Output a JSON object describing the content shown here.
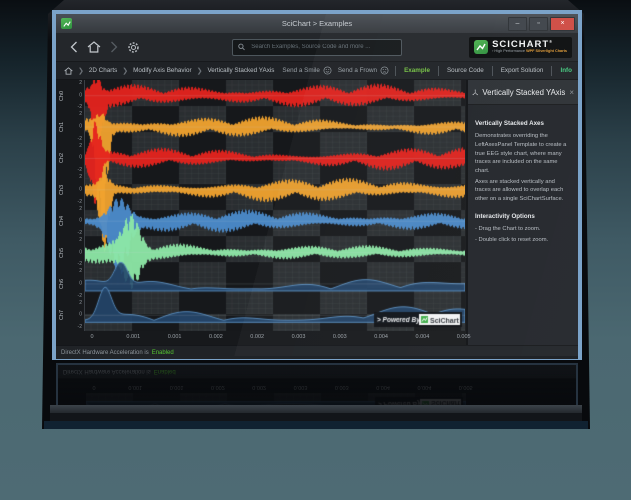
{
  "window": {
    "title": "SciChart > Examples",
    "controls": {
      "minimize": "–",
      "maximize": "▫",
      "close": "×"
    }
  },
  "toolbar": {
    "search_placeholder": "Search Examples, Source Code and more ...",
    "logo": {
      "brand": "SCICHART",
      "reg": "®",
      "tagline_pre": "› High Performance ",
      "tagline_hl": "WPF Silverlight Charts"
    }
  },
  "breadcrumb": {
    "items": [
      "2D Charts",
      "Modify Axis Behavior",
      "Vertically Stacked YAxis"
    ]
  },
  "feedback": {
    "smile": "Send a Smile",
    "frown": "Send a Frown"
  },
  "tabs": [
    {
      "label": "Example"
    },
    {
      "label": "Source Code"
    },
    {
      "label": "Export Solution"
    },
    {
      "label": "Info"
    }
  ],
  "panel": {
    "title": "Vertically Stacked YAxis",
    "close": "×",
    "heading1": "Vertically Stacked Axes",
    "para1": "Demonstrates overriding the LeftAxesPanel Template to create a true EEG style chart, where many traces are included on the same chart.",
    "para2": "Axes are stacked vertically and traces are allowed to overlap each other on a single SciChartSurface.",
    "heading2": "Interactivity Options",
    "bullet1": "- Drag the Chart to zoom.",
    "bullet2": "- Double click to reset zoom."
  },
  "chart": {
    "channels": [
      {
        "label": "Ch0",
        "color": "#e5231d",
        "kind": "eeg"
      },
      {
        "label": "Ch1",
        "color": "#f0a22e",
        "kind": "eeg"
      },
      {
        "label": "Ch2",
        "color": "#e5231d",
        "kind": "eeg"
      },
      {
        "label": "Ch3",
        "color": "#f0a22e",
        "kind": "eeg"
      },
      {
        "label": "Ch4",
        "color": "#4b8bcb",
        "kind": "eeg"
      },
      {
        "label": "Ch5",
        "color": "#8de8a6",
        "kind": "eeg"
      },
      {
        "label": "Ch6",
        "color": "#5588b8",
        "fill": "#24466b",
        "kind": "area"
      },
      {
        "label": "Ch7",
        "color": "#5588b8",
        "fill": "#24466b",
        "kind": "area"
      }
    ],
    "ytick_labels": [
      "2",
      "0",
      "-2"
    ],
    "x_labels": [
      "0",
      "0.001",
      "0.001",
      "0.002",
      "0.002",
      "0.003",
      "0.003",
      "0.004",
      "0.004",
      "0.005"
    ],
    "powered_prefix": "> Powered By",
    "powered_brand": "SciChart"
  },
  "statusbar": {
    "prefix": "DirectX Hardware Acceleration is",
    "status": "Enabled"
  },
  "colors": {
    "frame_blue": "#7ba3c9",
    "tab_active_green": "#74c044",
    "info_green": "#43c87e",
    "status_green": "#55c431",
    "brand_green": "#3fae49",
    "close_red": "#cf4a42"
  }
}
